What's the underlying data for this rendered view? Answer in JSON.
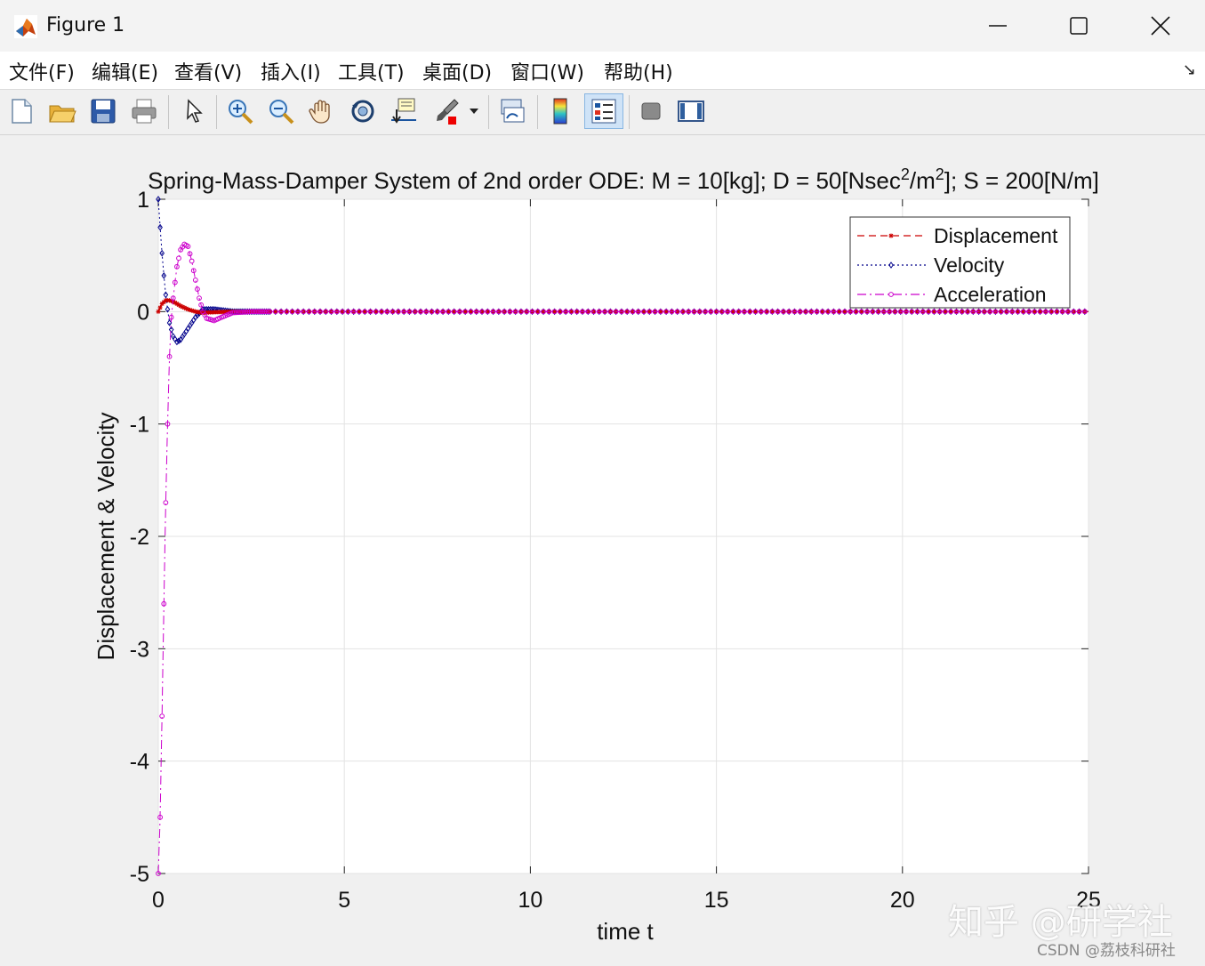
{
  "window": {
    "title": "Figure 1",
    "icon": "matlab-icon",
    "controls": [
      "minimize-icon",
      "maximize-icon",
      "close-icon"
    ]
  },
  "menubar": {
    "items": [
      {
        "label": "文件(F)"
      },
      {
        "label": "编辑(E)"
      },
      {
        "label": "查看(V)"
      },
      {
        "label": "插入(I)"
      },
      {
        "label": "工具(T)"
      },
      {
        "label": "桌面(D)"
      },
      {
        "label": "窗口(W)"
      },
      {
        "label": "帮助(H)"
      }
    ],
    "dock_icon": "↘"
  },
  "toolbar": {
    "buttons": [
      {
        "icon": "new-figure-icon"
      },
      {
        "icon": "open-file-icon"
      },
      {
        "icon": "save-icon"
      },
      {
        "icon": "print-icon"
      },
      {
        "icon": "pointer-icon"
      },
      {
        "icon": "zoom-in-icon"
      },
      {
        "icon": "zoom-out-icon"
      },
      {
        "icon": "pan-icon"
      },
      {
        "icon": "rotate-3d-icon"
      },
      {
        "icon": "data-cursor-icon"
      },
      {
        "icon": "brush-icon"
      },
      {
        "icon": "link-plot-icon"
      },
      {
        "icon": "colorbar-icon"
      },
      {
        "icon": "legend-icon",
        "active": true
      },
      {
        "icon": "hide-plot-tools-icon"
      },
      {
        "icon": "show-plot-tools-icon"
      }
    ]
  },
  "chart_data": {
    "type": "line",
    "title": "Spring-Mass-Damper System of 2nd order ODE:  M = 10[kg]; D = 50[Nsec^2/m^2]; S = 200[N/m]",
    "title_parts": {
      "a": "Spring-Mass-Damper System of 2nd order ODE:  M = 10[kg]; D = 50[Nsec",
      "sup1": "2",
      "b": "/m",
      "sup2": "2",
      "c": "]; S = 200[N/m]"
    },
    "xlabel": "time t",
    "ylabel": "Displacement & Velocity",
    "xlim": [
      0,
      25
    ],
    "ylim": [
      -5,
      1
    ],
    "xticks": [
      "0",
      "5",
      "10",
      "15",
      "20",
      "25"
    ],
    "yticks": [
      "1",
      "0",
      "-1",
      "-2",
      "-3",
      "-4",
      "-5"
    ],
    "grid": true,
    "legend_position": "top-right",
    "series": [
      {
        "name": "Displacement",
        "color": "#cc0000",
        "marker": "*",
        "linestyle": "--",
        "x": [
          0,
          0.1,
          0.2,
          0.3,
          0.4,
          0.5,
          0.6,
          0.8,
          1.0,
          1.2,
          1.5,
          2.0,
          2.5,
          25
        ],
        "values": [
          0,
          0.07,
          0.1,
          0.1,
          0.09,
          0.07,
          0.05,
          0.02,
          0,
          -0.01,
          -0.005,
          0,
          0,
          0
        ]
      },
      {
        "name": "Velocity",
        "color": "#00008b",
        "marker": "d",
        "linestyle": ":",
        "x": [
          0,
          0.05,
          0.1,
          0.15,
          0.2,
          0.25,
          0.3,
          0.4,
          0.5,
          0.6,
          0.8,
          1.0,
          1.2,
          1.5,
          2.0,
          2.5,
          25
        ],
        "values": [
          1,
          0.75,
          0.52,
          0.32,
          0.15,
          0.02,
          -0.1,
          -0.22,
          -0.27,
          -0.25,
          -0.15,
          -0.05,
          0.02,
          0.02,
          0,
          0,
          0
        ]
      },
      {
        "name": "Acceleration",
        "color": "#cc00cc",
        "marker": "o",
        "linestyle": "-.",
        "x": [
          0,
          0.05,
          0.1,
          0.15,
          0.2,
          0.25,
          0.3,
          0.35,
          0.4,
          0.5,
          0.6,
          0.7,
          0.8,
          0.9,
          1.0,
          1.1,
          1.2,
          1.3,
          1.5,
          1.7,
          2.0,
          2.5,
          25
        ],
        "values": [
          -5,
          -4.5,
          -3.6,
          -2.6,
          -1.7,
          -1.0,
          -0.4,
          -0.05,
          0.12,
          0.4,
          0.55,
          0.6,
          0.58,
          0.45,
          0.28,
          0.12,
          0,
          -0.06,
          -0.08,
          -0.05,
          -0.01,
          0,
          0
        ]
      }
    ]
  },
  "watermark": {
    "zhihu": "知乎 @研学社",
    "csdn": "CSDN @荔枝科研社"
  }
}
